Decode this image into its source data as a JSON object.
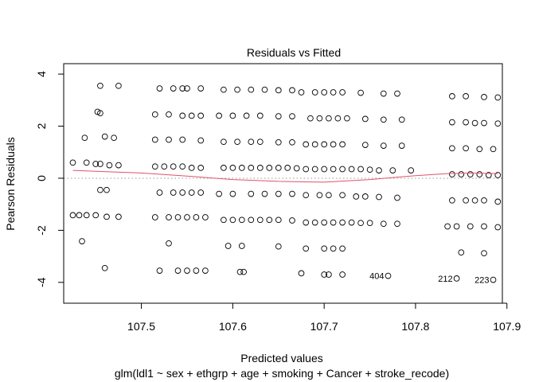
{
  "chart_data": {
    "type": "scatter",
    "title": "Residuals vs Fitted",
    "xlabel": "Predicted values",
    "subtitle": "glm(ldl1 ~ sex + ethgrp + age + smoking + Cancer + stroke_recode)",
    "ylabel": "Pearson Residuals",
    "xlim": [
      107.415,
      107.895
    ],
    "ylim": [
      -4.8,
      4.4
    ],
    "xticks": [
      107.5,
      107.6,
      107.7,
      107.8,
      107.9
    ],
    "yticks": [
      -4,
      -2,
      0,
      2,
      4
    ],
    "zero_line": 0,
    "grid": false,
    "points": [
      [
        107.425,
        0.6
      ],
      [
        107.44,
        0.6
      ],
      [
        107.45,
        0.55
      ],
      [
        107.455,
        0.55
      ],
      [
        107.465,
        0.5
      ],
      [
        107.475,
        0.5
      ],
      [
        107.425,
        -1.42
      ],
      [
        107.432,
        -1.42
      ],
      [
        107.44,
        -1.42
      ],
      [
        107.45,
        -1.42
      ],
      [
        107.462,
        -1.48
      ],
      [
        107.475,
        -1.48
      ],
      [
        107.435,
        -2.42
      ],
      [
        107.46,
        -3.45
      ],
      [
        107.455,
        3.55
      ],
      [
        107.475,
        3.55
      ],
      [
        107.452,
        2.55
      ],
      [
        107.455,
        2.5
      ],
      [
        107.46,
        1.6
      ],
      [
        107.47,
        1.55
      ],
      [
        107.455,
        -0.45
      ],
      [
        107.462,
        -0.45
      ],
      [
        107.438,
        1.55
      ],
      [
        107.515,
        0.45
      ],
      [
        107.525,
        0.45
      ],
      [
        107.535,
        0.45
      ],
      [
        107.545,
        0.45
      ],
      [
        107.555,
        0.4
      ],
      [
        107.565,
        0.4
      ],
      [
        107.515,
        -1.5
      ],
      [
        107.53,
        -1.5
      ],
      [
        107.54,
        -1.5
      ],
      [
        107.55,
        -1.5
      ],
      [
        107.56,
        -1.5
      ],
      [
        107.57,
        -1.5
      ],
      [
        107.52,
        -0.55
      ],
      [
        107.535,
        -0.55
      ],
      [
        107.545,
        -0.55
      ],
      [
        107.555,
        -0.55
      ],
      [
        107.565,
        -0.55
      ],
      [
        107.515,
        1.48
      ],
      [
        107.53,
        1.48
      ],
      [
        107.545,
        1.48
      ],
      [
        107.565,
        1.45
      ],
      [
        107.515,
        2.45
      ],
      [
        107.53,
        2.45
      ],
      [
        107.545,
        2.4
      ],
      [
        107.555,
        2.4
      ],
      [
        107.565,
        2.4
      ],
      [
        107.52,
        3.45
      ],
      [
        107.535,
        3.45
      ],
      [
        107.545,
        3.45
      ],
      [
        107.55,
        3.45
      ],
      [
        107.565,
        3.45
      ],
      [
        107.53,
        -2.5
      ],
      [
        107.52,
        -3.55
      ],
      [
        107.54,
        -3.55
      ],
      [
        107.55,
        -3.55
      ],
      [
        107.56,
        -3.55
      ],
      [
        107.57,
        -3.55
      ],
      [
        107.59,
        0.4
      ],
      [
        107.6,
        0.4
      ],
      [
        107.61,
        0.4
      ],
      [
        107.62,
        0.4
      ],
      [
        107.63,
        0.4
      ],
      [
        107.64,
        0.4
      ],
      [
        107.65,
        0.4
      ],
      [
        107.66,
        0.4
      ],
      [
        107.67,
        0.38
      ],
      [
        107.59,
        -1.6
      ],
      [
        107.6,
        -1.6
      ],
      [
        107.61,
        -1.6
      ],
      [
        107.62,
        -1.6
      ],
      [
        107.63,
        -1.6
      ],
      [
        107.64,
        -1.6
      ],
      [
        107.65,
        -1.6
      ],
      [
        107.665,
        -1.62
      ],
      [
        107.585,
        -0.6
      ],
      [
        107.6,
        -0.6
      ],
      [
        107.62,
        -0.6
      ],
      [
        107.635,
        -0.6
      ],
      [
        107.65,
        -0.6
      ],
      [
        107.665,
        -0.6
      ],
      [
        107.59,
        1.4
      ],
      [
        107.605,
        1.4
      ],
      [
        107.62,
        1.4
      ],
      [
        107.63,
        1.4
      ],
      [
        107.65,
        1.38
      ],
      [
        107.665,
        1.38
      ],
      [
        107.585,
        2.4
      ],
      [
        107.6,
        2.4
      ],
      [
        107.615,
        2.4
      ],
      [
        107.63,
        2.4
      ],
      [
        107.65,
        2.38
      ],
      [
        107.665,
        2.38
      ],
      [
        107.59,
        3.4
      ],
      [
        107.605,
        3.4
      ],
      [
        107.62,
        3.4
      ],
      [
        107.635,
        3.4
      ],
      [
        107.65,
        3.38
      ],
      [
        107.665,
        3.38
      ],
      [
        107.595,
        -2.6
      ],
      [
        107.61,
        -2.6
      ],
      [
        107.65,
        -2.62
      ],
      [
        107.608,
        -3.6
      ],
      [
        107.612,
        -3.6
      ],
      [
        107.68,
        0.35
      ],
      [
        107.69,
        0.35
      ],
      [
        107.7,
        0.35
      ],
      [
        107.71,
        0.35
      ],
      [
        107.72,
        0.35
      ],
      [
        107.73,
        0.35
      ],
      [
        107.74,
        0.35
      ],
      [
        107.75,
        0.33
      ],
      [
        107.68,
        -1.7
      ],
      [
        107.69,
        -1.7
      ],
      [
        107.7,
        -1.7
      ],
      [
        107.71,
        -1.7
      ],
      [
        107.72,
        -1.7
      ],
      [
        107.73,
        -1.7
      ],
      [
        107.74,
        -1.72
      ],
      [
        107.75,
        -1.72
      ],
      [
        107.765,
        -1.75
      ],
      [
        107.78,
        -1.75
      ],
      [
        107.68,
        -0.65
      ],
      [
        107.695,
        -0.65
      ],
      [
        107.705,
        -0.65
      ],
      [
        107.72,
        -0.65
      ],
      [
        107.735,
        -0.7
      ],
      [
        107.745,
        -0.7
      ],
      [
        107.76,
        -0.72
      ],
      [
        107.78,
        -0.75
      ],
      [
        107.68,
        1.3
      ],
      [
        107.69,
        1.3
      ],
      [
        107.7,
        1.3
      ],
      [
        107.71,
        1.3
      ],
      [
        107.72,
        1.3
      ],
      [
        107.745,
        1.28
      ],
      [
        107.765,
        1.25
      ],
      [
        107.785,
        1.25
      ],
      [
        107.685,
        2.3
      ],
      [
        107.695,
        2.3
      ],
      [
        107.705,
        2.3
      ],
      [
        107.715,
        2.3
      ],
      [
        107.725,
        2.3
      ],
      [
        107.745,
        2.28
      ],
      [
        107.765,
        2.25
      ],
      [
        107.785,
        2.25
      ],
      [
        107.675,
        3.3
      ],
      [
        107.69,
        3.3
      ],
      [
        107.7,
        3.3
      ],
      [
        107.71,
        3.3
      ],
      [
        107.72,
        3.3
      ],
      [
        107.74,
        3.28
      ],
      [
        107.765,
        3.25
      ],
      [
        107.78,
        3.25
      ],
      [
        107.68,
        -2.7
      ],
      [
        107.7,
        -2.7
      ],
      [
        107.71,
        -2.7
      ],
      [
        107.72,
        -2.7
      ],
      [
        107.675,
        -3.65
      ],
      [
        107.7,
        -3.7
      ],
      [
        107.705,
        -3.7
      ],
      [
        107.72,
        -3.7
      ],
      [
        107.77,
        -3.75
      ],
      [
        107.76,
        0.3
      ],
      [
        107.775,
        0.3
      ],
      [
        107.795,
        0.3
      ],
      [
        107.84,
        0.15
      ],
      [
        107.85,
        0.15
      ],
      [
        107.86,
        0.15
      ],
      [
        107.87,
        0.15
      ],
      [
        107.88,
        0.12
      ],
      [
        107.89,
        0.12
      ],
      [
        107.84,
        -0.85
      ],
      [
        107.855,
        -0.85
      ],
      [
        107.865,
        -0.85
      ],
      [
        107.875,
        -0.85
      ],
      [
        107.89,
        -0.9
      ],
      [
        107.835,
        -1.85
      ],
      [
        107.845,
        -1.85
      ],
      [
        107.86,
        -1.85
      ],
      [
        107.875,
        -1.85
      ],
      [
        107.89,
        -1.88
      ],
      [
        107.84,
        1.15
      ],
      [
        107.855,
        1.15
      ],
      [
        107.87,
        1.12
      ],
      [
        107.885,
        1.12
      ],
      [
        107.84,
        2.15
      ],
      [
        107.855,
        2.15
      ],
      [
        107.865,
        2.12
      ],
      [
        107.875,
        2.12
      ],
      [
        107.89,
        2.1
      ],
      [
        107.84,
        3.15
      ],
      [
        107.855,
        3.15
      ],
      [
        107.875,
        3.12
      ],
      [
        107.89,
        3.1
      ],
      [
        107.85,
        -2.85
      ],
      [
        107.875,
        -2.88
      ],
      [
        107.845,
        -3.85
      ],
      [
        107.885,
        -3.9
      ]
    ],
    "smoother": {
      "color": "#df536b",
      "x": [
        107.425,
        107.5,
        107.55,
        107.6,
        107.65,
        107.7,
        107.75,
        107.8,
        107.835,
        107.86,
        107.89
      ],
      "y": [
        0.3,
        0.2,
        0.08,
        -0.05,
        -0.12,
        -0.15,
        -0.05,
        0.1,
        0.18,
        0.2,
        0.18
      ]
    },
    "point_labels": [
      {
        "text": "404",
        "x": 107.77,
        "y": -3.75
      },
      {
        "text": "212",
        "x": 107.845,
        "y": -3.85
      },
      {
        "text": "223",
        "x": 107.885,
        "y": -3.9
      }
    ]
  }
}
